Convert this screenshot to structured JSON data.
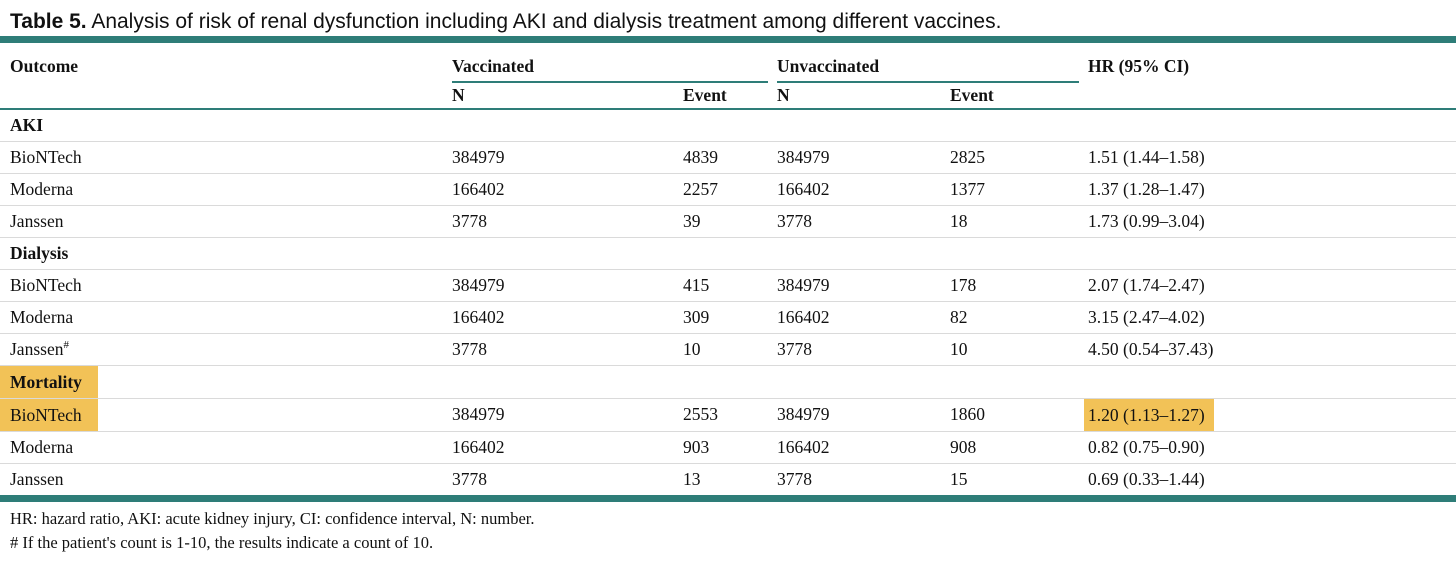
{
  "title": {
    "label": "Table 5.",
    "text": " Analysis of risk of renal dysfunction including AKI and dialysis treatment among different vaccines."
  },
  "colors": {
    "teal": "#2e7d78",
    "highlight": "#f2c257",
    "row_divider": "#dadada"
  },
  "table": {
    "header": {
      "outcome": "Outcome",
      "vaccinated": "Vaccinated",
      "unvaccinated": "Unvaccinated",
      "hr": "HR (95% CI)",
      "n": "N",
      "event": "Event"
    },
    "sections": [
      {
        "name": "AKI",
        "rows": [
          {
            "name": "BioNTech",
            "vn": "384979",
            "ve": "4839",
            "un": "384979",
            "ue": "2825",
            "hr": "1.51 (1.44–1.58)"
          },
          {
            "name": "Moderna",
            "vn": "166402",
            "ve": "2257",
            "un": "166402",
            "ue": "1377",
            "hr": "1.37 (1.28–1.47)"
          },
          {
            "name": "Janssen",
            "vn": "3778",
            "ve": "39",
            "un": "3778",
            "ue": "18",
            "hr": "1.73 (0.99–3.04)"
          }
        ]
      },
      {
        "name": "Dialysis",
        "rows": [
          {
            "name": "BioNTech",
            "vn": "384979",
            "ve": "415",
            "un": "384979",
            "ue": "178",
            "hr": "2.07 (1.74–2.47)"
          },
          {
            "name": "Moderna",
            "vn": "166402",
            "ve": "309",
            "un": "166402",
            "ue": "82",
            "hr": "3.15 (2.47–4.02)"
          },
          {
            "name": "Janssen",
            "sup": "#",
            "vn": "3778",
            "ve": "10",
            "un": "3778",
            "ue": "10",
            "hr": "4.50 (0.54–37.43)"
          }
        ]
      },
      {
        "name": "Mortality",
        "rows": [
          {
            "name": "BioNTech",
            "vn": "384979",
            "ve": "2553",
            "un": "384979",
            "ue": "1860",
            "hr": "1.20 (1.13–1.27)"
          },
          {
            "name": "Moderna",
            "vn": "166402",
            "ve": "903",
            "un": "166402",
            "ue": "908",
            "hr": "0.82 (0.75–0.90)"
          },
          {
            "name": "Janssen",
            "vn": "3778",
            "ve": "13",
            "un": "3778",
            "ue": "15",
            "hr": "0.69 (0.33–1.44)"
          }
        ]
      }
    ],
    "footnotes": [
      "HR: hazard ratio, AKI: acute kidney injury, CI: confidence interval, N: number.",
      "# If the patient's count is 1-10, the results indicate a count of 10."
    ]
  }
}
